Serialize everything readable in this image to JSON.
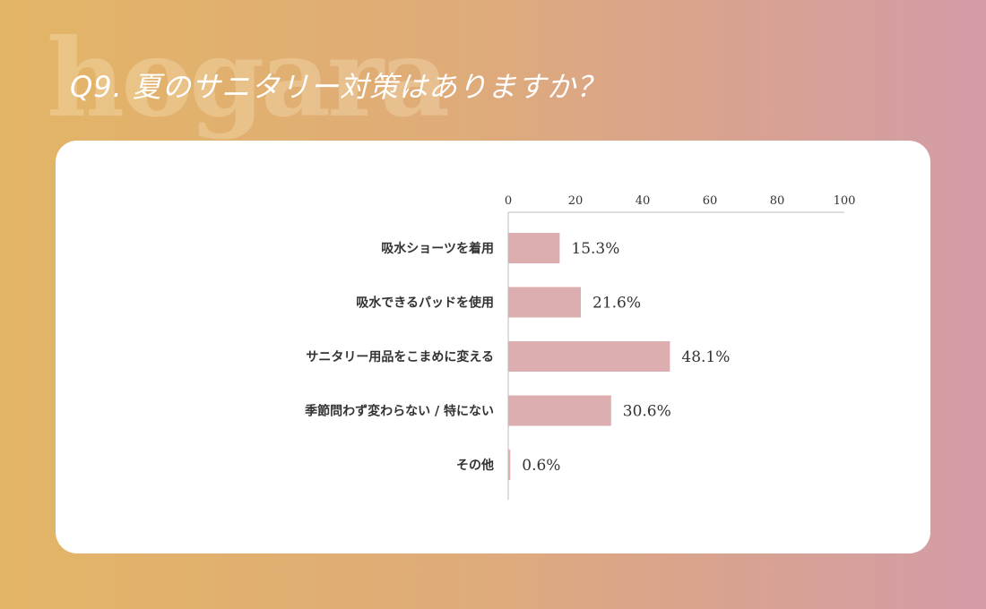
{
  "watermark": "hogara",
  "title": "Q9. 夏のサニタリー対策はありますか？",
  "chart_data": {
    "type": "bar",
    "orientation": "horizontal",
    "categories": [
      "吸水ショーツを着用",
      "吸水できるパッドを使用",
      "サニタリー用品をこまめに変える",
      "季節問わず変わらない / 特にない",
      "その他"
    ],
    "values": [
      15.3,
      21.6,
      48.1,
      30.6,
      0.6
    ],
    "data_labels": [
      "15.3%",
      "21.6%",
      "48.1%",
      "30.6%",
      "0.6%"
    ],
    "xlim": [
      0,
      100
    ],
    "xticks": [
      "0",
      "20",
      "40",
      "60",
      "80",
      "100"
    ],
    "bar_color": "#dcaeaf",
    "grid": false
  }
}
